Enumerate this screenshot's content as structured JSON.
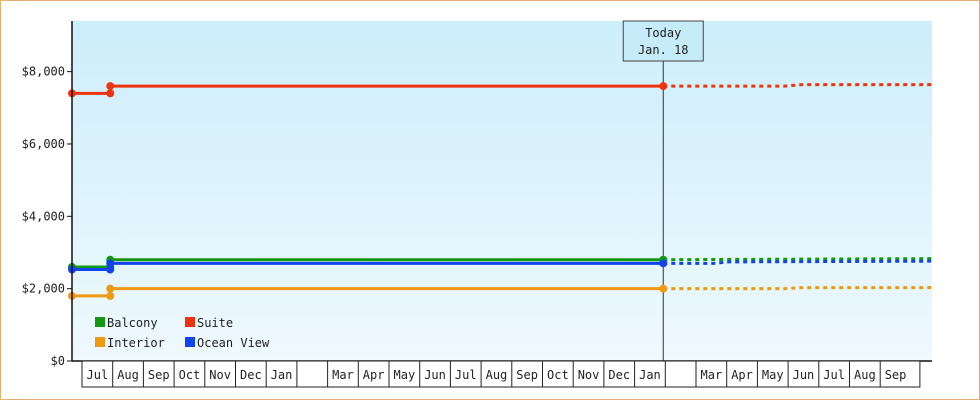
{
  "chart_data": {
    "type": "line",
    "title": "",
    "xlabel": "",
    "ylabel": "",
    "ylim": [
      0,
      9400
    ],
    "y_ticks": [
      {
        "value": 0,
        "label": "$0"
      },
      {
        "value": 2000,
        "label": "$2,000"
      },
      {
        "value": 4000,
        "label": "$4,000"
      },
      {
        "value": 6000,
        "label": "$6,000"
      },
      {
        "value": 8000,
        "label": "$8,000"
      }
    ],
    "x_ticks": [
      "Jul",
      "Aug",
      "Sep",
      "Oct",
      "Nov",
      "Dec",
      "Jan",
      "",
      "Mar",
      "Apr",
      "May",
      "Jun",
      "Jul",
      "Aug",
      "Sep",
      "Oct",
      "Nov",
      "Dec",
      "Jan",
      "",
      "Mar",
      "Apr",
      "May",
      "Jun",
      "Jul",
      "Aug",
      "Sep"
    ],
    "x_range": [
      "2016-06-25",
      "2018-10-05"
    ],
    "today": {
      "date": "2018-01-18",
      "label_line1": "Today",
      "label_line2": "Jan. 18"
    },
    "grid": false,
    "legend_position": "bottom-left",
    "series": [
      {
        "name": "Balcony",
        "color": "#119911",
        "points": [
          [
            "2016-06-25",
            2600
          ],
          [
            "2016-08-01",
            2600
          ],
          [
            "2016-08-01",
            2800
          ],
          [
            "2018-01-18",
            2800
          ]
        ],
        "markers": [
          [
            "2016-06-25",
            2600
          ],
          [
            "2016-08-01",
            2600
          ],
          [
            "2016-08-01",
            2800
          ],
          [
            "2018-01-18",
            2800
          ]
        ],
        "forecast": [
          [
            "2018-01-18",
            2800
          ],
          [
            "2018-10-05",
            2830
          ]
        ]
      },
      {
        "name": "Suite",
        "color": "#ee3311",
        "points": [
          [
            "2016-06-25",
            7400
          ],
          [
            "2016-08-01",
            7400
          ],
          [
            "2016-08-01",
            7600
          ],
          [
            "2018-01-18",
            7600
          ]
        ],
        "markers": [
          [
            "2016-06-25",
            7400
          ],
          [
            "2016-08-01",
            7400
          ],
          [
            "2016-08-01",
            7600
          ],
          [
            "2018-01-18",
            7600
          ]
        ],
        "forecast": [
          [
            "2018-01-18",
            7600
          ],
          [
            "2018-05-15",
            7600
          ],
          [
            "2018-06-01",
            7640
          ],
          [
            "2018-10-05",
            7640
          ]
        ]
      },
      {
        "name": "Interior",
        "color": "#ee9911",
        "points": [
          [
            "2016-06-25",
            1800
          ],
          [
            "2016-08-01",
            1800
          ],
          [
            "2016-08-01",
            2000
          ],
          [
            "2018-01-18",
            2000
          ]
        ],
        "markers": [
          [
            "2016-06-25",
            1800
          ],
          [
            "2016-08-01",
            1800
          ],
          [
            "2016-08-01",
            2000
          ],
          [
            "2018-01-18",
            2000
          ]
        ],
        "forecast": [
          [
            "2018-01-18",
            2000
          ],
          [
            "2018-05-15",
            2000
          ],
          [
            "2018-06-01",
            2030
          ],
          [
            "2018-10-05",
            2030
          ]
        ]
      },
      {
        "name": "Ocean View",
        "color": "#1144ee",
        "points": [
          [
            "2016-06-25",
            2530
          ],
          [
            "2016-08-01",
            2530
          ],
          [
            "2016-08-01",
            2700
          ],
          [
            "2018-01-18",
            2700
          ]
        ],
        "markers": [
          [
            "2016-06-25",
            2530
          ],
          [
            "2016-08-01",
            2530
          ],
          [
            "2016-08-01",
            2700
          ],
          [
            "2018-01-18",
            2700
          ]
        ],
        "forecast": [
          [
            "2018-01-18",
            2700
          ],
          [
            "2018-03-10",
            2700
          ],
          [
            "2018-03-20",
            2740
          ],
          [
            "2018-10-05",
            2760
          ]
        ]
      }
    ]
  }
}
